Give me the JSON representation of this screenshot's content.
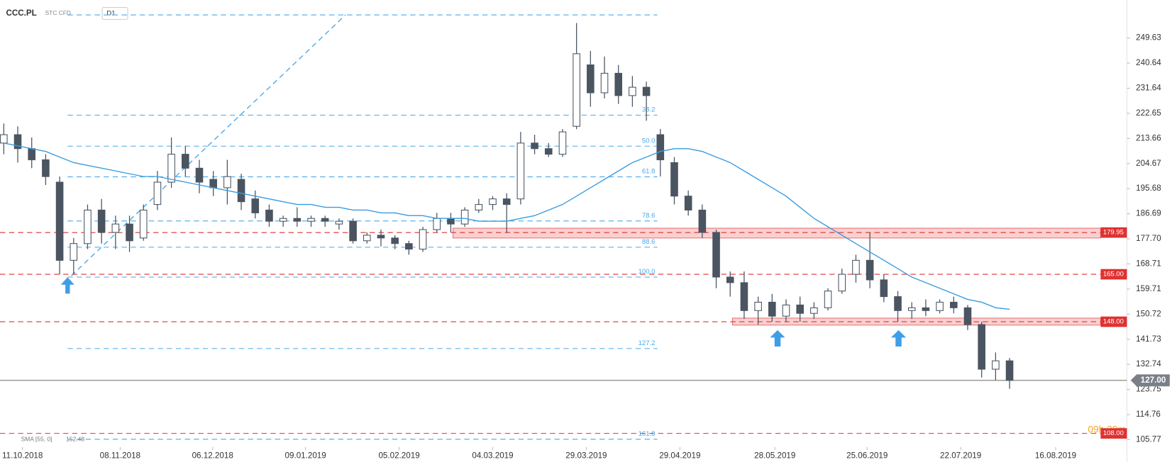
{
  "chart_data": {
    "type": "candlestick",
    "title": "CCC.PL",
    "instrument_type": "STC",
    "market": "CFD",
    "timeframe": "D1",
    "up_color": "#ffffff",
    "down_color": "#4a5561",
    "open": [
      212,
      215,
      210,
      206,
      198,
      170,
      176,
      188,
      180,
      183,
      178,
      190,
      198,
      208,
      203,
      199,
      196,
      199,
      192,
      188,
      184,
      185,
      184,
      185,
      183,
      184,
      177,
      179,
      178,
      176,
      174,
      181,
      185,
      183,
      188,
      190,
      192,
      192,
      212,
      210,
      208,
      218,
      240,
      230,
      237,
      229,
      232,
      215,
      205,
      193,
      188,
      180,
      164,
      162,
      152,
      155,
      150,
      154,
      151,
      153,
      159,
      165,
      170,
      163,
      157,
      152,
      153,
      152,
      155,
      153,
      147,
      131,
      134
    ],
    "high": [
      219,
      218,
      214,
      208,
      200,
      178,
      190,
      192,
      186,
      186,
      190,
      202,
      214,
      211,
      206,
      202,
      206,
      201,
      195,
      190,
      186,
      189,
      186,
      186,
      185,
      185,
      180,
      181,
      179,
      177,
      182,
      187,
      187,
      189,
      192,
      193,
      194,
      216,
      215,
      212,
      217,
      255,
      245,
      243,
      240,
      236,
      234,
      217,
      207,
      195,
      190,
      181,
      166,
      166,
      157,
      158,
      156,
      157,
      155,
      160,
      167,
      172,
      180,
      165,
      159,
      155,
      156,
      156,
      157,
      154,
      148,
      137,
      135
    ],
    "low": [
      208,
      205,
      203,
      197,
      165,
      165,
      174,
      176,
      174,
      173,
      177,
      188,
      196,
      200,
      194,
      193,
      190,
      188,
      185,
      182,
      182,
      182,
      182,
      182,
      181,
      176,
      176,
      175,
      174,
      172,
      173,
      180,
      180,
      182,
      187,
      188,
      180,
      190,
      208,
      207,
      207,
      217,
      225,
      228,
      226,
      225,
      220,
      200,
      190,
      186,
      178,
      160,
      157,
      149,
      147,
      148,
      148,
      148,
      149,
      152,
      158,
      162,
      160,
      155,
      148,
      149,
      150,
      151,
      151,
      145,
      128,
      127,
      124
    ],
    "close": [
      215,
      210,
      206,
      200,
      170,
      176,
      188,
      180,
      183,
      177,
      188,
      198,
      208,
      203,
      198,
      196,
      200,
      191,
      187,
      184,
      185,
      184,
      185,
      184,
      184,
      177,
      179,
      178,
      176,
      174,
      181,
      185,
      183,
      188,
      190,
      192,
      190,
      212,
      210,
      208,
      216,
      244,
      230,
      237,
      229,
      232,
      229,
      206,
      193,
      188,
      180,
      164,
      162,
      152,
      155,
      150,
      154,
      151,
      153,
      159,
      165,
      170,
      163,
      157,
      152,
      153,
      152,
      155,
      153,
      147,
      131,
      134,
      127
    ],
    "sma": {
      "name": "SMA [55, 0]",
      "color": "#3a9be0",
      "values": [
        212,
        211,
        210,
        209,
        207,
        205,
        204,
        203,
        202,
        201,
        200,
        200,
        199,
        198,
        197,
        196,
        195,
        194,
        193,
        192,
        191,
        190,
        190,
        189,
        189,
        188,
        188,
        187,
        187,
        186,
        186,
        185,
        185,
        185,
        184,
        184,
        184,
        185,
        186,
        188,
        190,
        193,
        196,
        199,
        202,
        205,
        207,
        209,
        210,
        210,
        209,
        207,
        205,
        202,
        199,
        196,
        193,
        189,
        185,
        182,
        179,
        176,
        173,
        170,
        167,
        164,
        162,
        160,
        158,
        156,
        155,
        153,
        152.48
      ]
    },
    "xlim": [
      -0.27,
      80.4
    ],
    "xticks": [
      {
        "value": 1.34,
        "label": "11.10.2018"
      },
      {
        "value": 8.33,
        "label": "08.11.2018"
      },
      {
        "value": 14.95,
        "label": "06.12.2018"
      },
      {
        "value": 21.6,
        "label": "09.01.2019"
      },
      {
        "value": 28.3,
        "label": "05.02.2019"
      },
      {
        "value": 35.0,
        "label": "04.03.2019"
      },
      {
        "value": 41.7,
        "label": "29.03.2019"
      },
      {
        "value": 48.4,
        "label": "29.04.2019"
      },
      {
        "value": 55.2,
        "label": "28.05.2019"
      },
      {
        "value": 61.8,
        "label": "25.06.2019"
      },
      {
        "value": 68.5,
        "label": "22.07.2019"
      },
      {
        "value": 75.3,
        "label": "16.08.2019"
      }
    ],
    "ylim": [
      103.1,
      263.24
    ],
    "yticks": [
      249.63,
      240.64,
      231.64,
      222.65,
      213.66,
      204.67,
      195.68,
      186.69,
      {
        "value": 177.7,
        "label": "177.70"
      },
      168.71,
      159.71,
      150.72,
      141.73,
      132.74,
      123.75,
      114.76,
      105.77
    ],
    "levels": [
      {
        "value": 179.95,
        "label": "179.95"
      },
      {
        "value": 165,
        "label": "165.00"
      },
      {
        "value": 148,
        "label": "148.00"
      },
      {
        "value": 108,
        "label": "108.00"
      }
    ],
    "level_color": "#e03131",
    "zones": [
      [
        178,
        181.5
      ],
      [
        146.8,
        149.3
      ]
    ],
    "price": {
      "value": 127,
      "label": "127.00"
    },
    "countdown": "09h 30m",
    "fibonacci": {
      "color": "#4aa8e8",
      "levels": [
        {
          "value": 257.9
        },
        {
          "value": 222.0,
          "label": "38.2"
        },
        {
          "value": 210.9,
          "label": "50.0"
        },
        {
          "value": 199.9,
          "label": "61.8"
        },
        {
          "value": 184.1,
          "label": "78.6"
        },
        {
          "value": 174.7,
          "label": "88.6"
        },
        {
          "value": 164.0,
          "label": "100.0"
        },
        {
          "value": 138.4,
          "label": "127.2"
        },
        {
          "value": 105.9,
          "label": "161.8"
        }
      ]
    }
  }
}
